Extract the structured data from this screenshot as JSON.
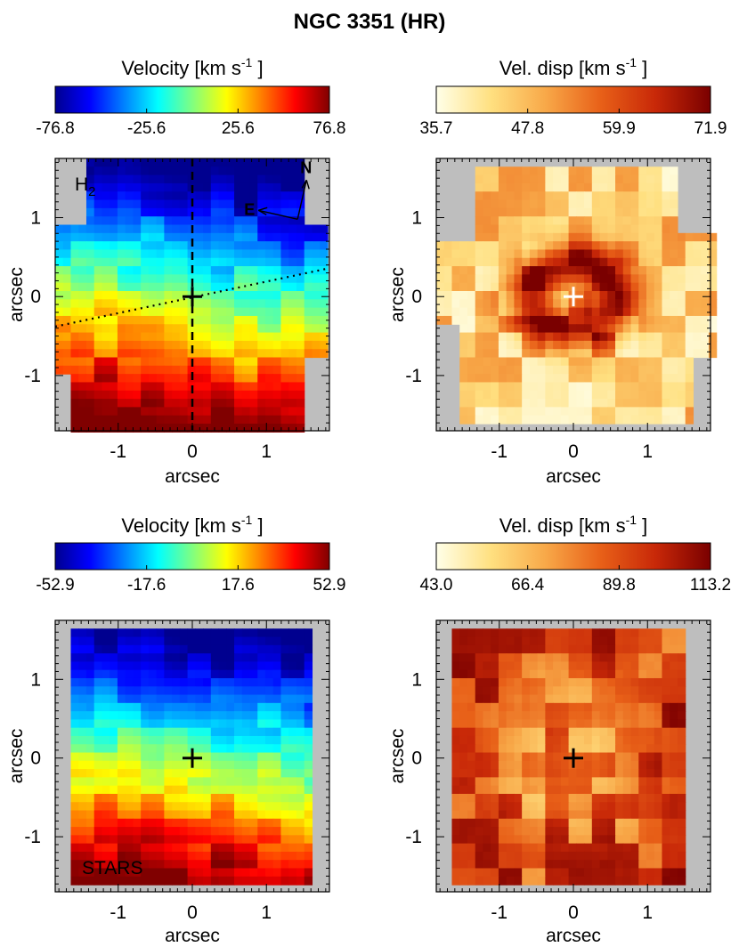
{
  "figure": {
    "title": "NGC 3351 (HR)"
  },
  "colors": {
    "background": "#bebebe",
    "jet": [
      "#00008f",
      "#0000ff",
      "#0080ff",
      "#00ffff",
      "#80ff80",
      "#ffff00",
      "#ff8000",
      "#ff0000",
      "#800000"
    ],
    "heat": [
      "#ffffe8",
      "#ffe080",
      "#f8a848",
      "#e86018",
      "#c82808",
      "#7a0000"
    ]
  },
  "chart_data": [
    {
      "type": "heatmap",
      "panel": "gas-velocity",
      "colorbar": {
        "title": "Velocity  [km s",
        "unit_power": "-1",
        "unit_close": "]",
        "scale": "jet",
        "range": [
          -76.8,
          76.8
        ],
        "ticks": [
          "-76.8",
          "-25.6",
          "25.6",
          "76.8"
        ]
      },
      "xlabel": "arcsec",
      "ylabel": "arcsec",
      "xlim": [
        -1.85,
        1.85
      ],
      "ylim": [
        -1.7,
        1.75
      ],
      "xticks": [
        "-1",
        "0",
        "1"
      ],
      "yticks": [
        "-1",
        "0",
        "1"
      ],
      "label": "H",
      "label_sub": "2",
      "compass": {
        "north": "N",
        "east": "E"
      },
      "center_marker": [
        0,
        0
      ],
      "field": {
        "kind": "rotation",
        "amplitude": 76.8,
        "seed": 11
      }
    },
    {
      "type": "heatmap",
      "panel": "gas-dispersion",
      "colorbar": {
        "title": "Vel. disp  [km s",
        "unit_power": "-1",
        "unit_close": "]",
        "scale": "heat",
        "range": [
          35.7,
          71.9
        ],
        "ticks": [
          "35.7",
          "47.8",
          "59.9",
          "71.9"
        ]
      },
      "xlabel": "arcsec",
      "ylabel": "arcsec",
      "xlim": [
        -1.85,
        1.85
      ],
      "ylim": [
        -1.7,
        1.75
      ],
      "xticks": [
        "-1",
        "0",
        "1"
      ],
      "yticks": [
        "-1",
        "0",
        "1"
      ],
      "center_marker": [
        0,
        0
      ],
      "field": {
        "kind": "dispersion",
        "seed": 23
      }
    },
    {
      "type": "heatmap",
      "panel": "stellar-velocity",
      "colorbar": {
        "title": "Velocity  [km s",
        "unit_power": "-1",
        "unit_close": "]",
        "scale": "jet",
        "range": [
          -52.9,
          52.9
        ],
        "ticks": [
          "-52.9",
          "-17.6",
          "17.6",
          "52.9"
        ]
      },
      "xlabel": "arcsec",
      "ylabel": "arcsec",
      "xlim": [
        -1.85,
        1.85
      ],
      "ylim": [
        -1.7,
        1.75
      ],
      "xticks": [
        "-1",
        "0",
        "1"
      ],
      "yticks": [
        "-1",
        "0",
        "1"
      ],
      "label": "STARS",
      "center_marker": [
        0,
        0
      ],
      "field": {
        "kind": "rotation",
        "amplitude": 52.9,
        "seed": 37
      }
    },
    {
      "type": "heatmap",
      "panel": "stellar-dispersion",
      "colorbar": {
        "title": "Vel. disp  [km s",
        "unit_power": "-1",
        "unit_close": "]",
        "scale": "heat",
        "range": [
          43.0,
          113.2
        ],
        "ticks": [
          "43.0",
          "66.4",
          "89.8",
          "113.2"
        ]
      },
      "xlabel": "arcsec",
      "ylabel": "arcsec",
      "xlim": [
        -1.85,
        1.85
      ],
      "ylim": [
        -1.7,
        1.75
      ],
      "xticks": [
        "-1",
        "0",
        "1"
      ],
      "yticks": [
        "-1",
        "0",
        "1"
      ],
      "center_marker": [
        0,
        0
      ],
      "field": {
        "kind": "stellar-dispersion",
        "seed": 51
      }
    }
  ]
}
